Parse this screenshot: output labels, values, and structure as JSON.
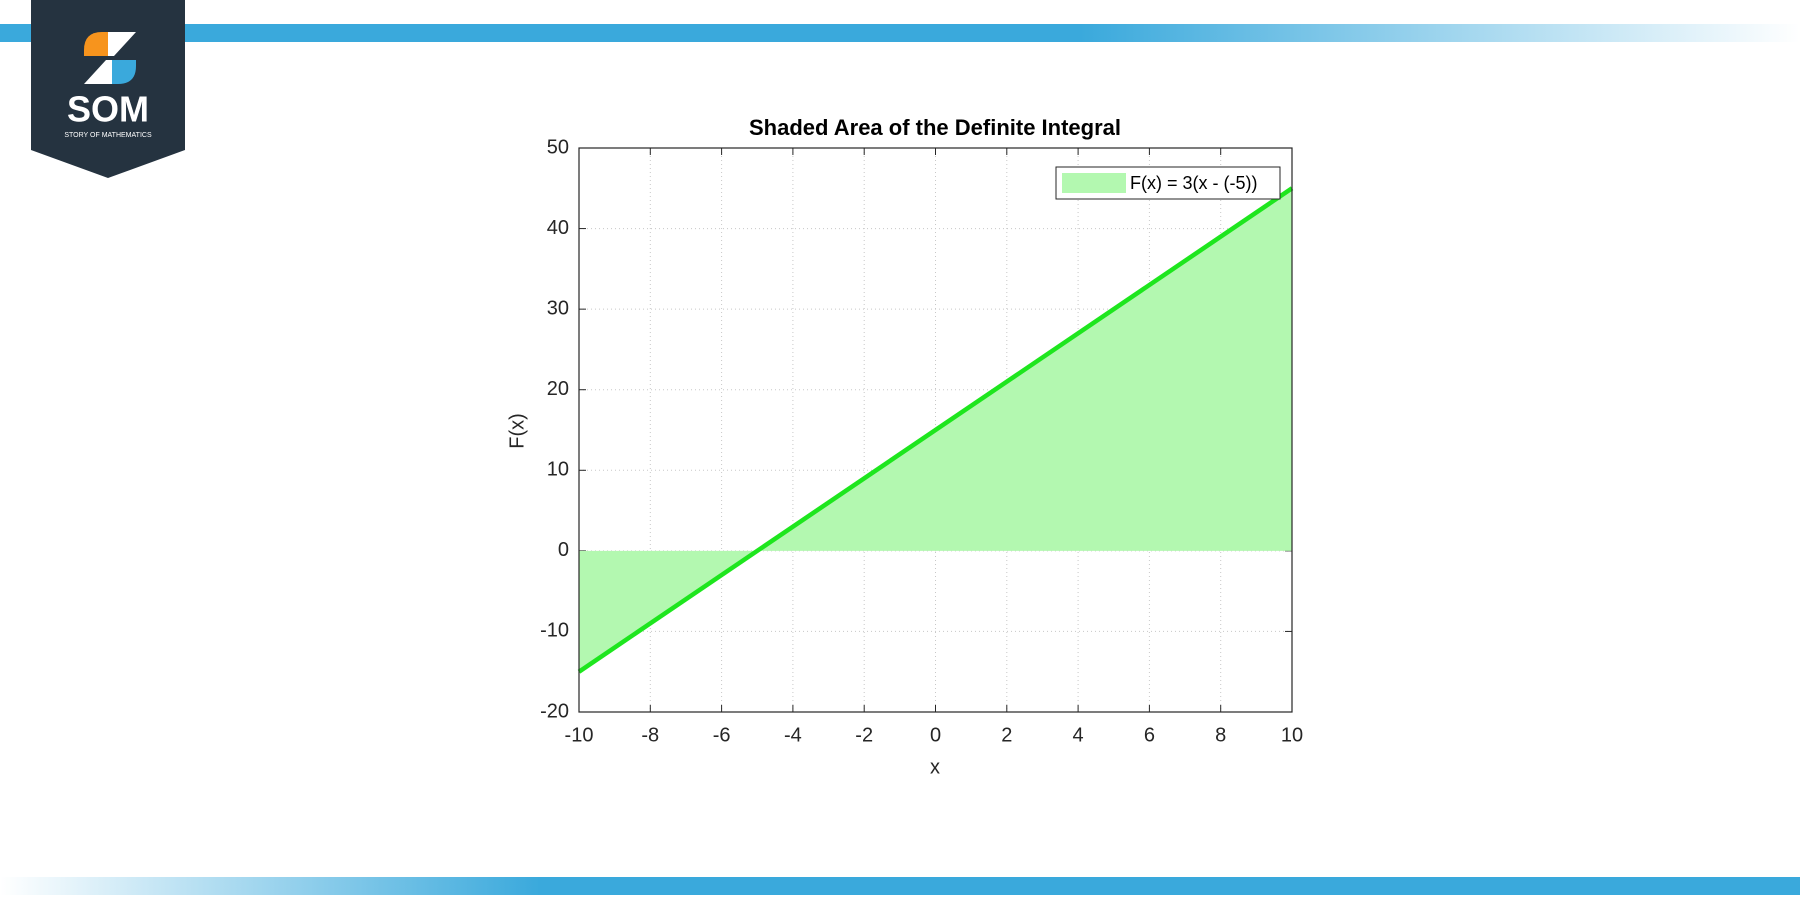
{
  "logo": {
    "name": "SOM",
    "tagline": "STORY OF MATHEMATICS"
  },
  "chart_data": {
    "type": "line",
    "title": "Shaded Area of the Definite Integral",
    "x_label": "x",
    "y_label": "F(x)",
    "x": [
      -10,
      10
    ],
    "series": [
      {
        "name": "F(x) = 3(x - (-5))",
        "color": "#1ee61e",
        "fill_color": "#b3f8b0",
        "values": [
          -15,
          45
        ]
      }
    ],
    "xlim": [
      -10,
      10
    ],
    "xticks": [
      -10,
      -8,
      -6,
      -4,
      -2,
      0,
      2,
      4,
      6,
      8,
      10
    ],
    "ylim": [
      -20,
      50
    ],
    "yticks": [
      -20,
      -10,
      0,
      10,
      20,
      30,
      40,
      50
    ],
    "grid": true,
    "legend": "upper right"
  }
}
